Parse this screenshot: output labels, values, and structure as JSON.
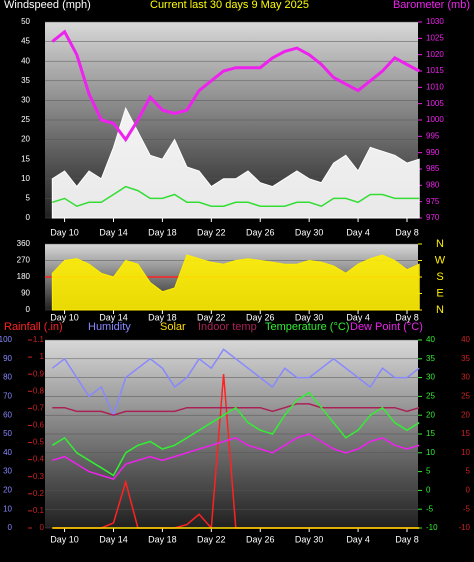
{
  "chart_data": [
    {
      "type": "line",
      "title": "Current last 30 days 9 May 2025",
      "y_label": "Windspeed (mph)",
      "y2_label": "Barometer (mb)",
      "x": [
        0,
        1,
        2,
        3,
        4,
        5,
        6,
        7,
        8,
        9,
        10,
        11,
        12,
        13,
        14,
        15,
        16,
        17,
        18,
        19,
        20,
        21,
        22,
        23,
        24,
        25,
        26,
        27,
        28,
        29,
        30
      ],
      "xlim": [
        -0.6,
        29.9
      ],
      "xticks": [
        {
          "value": 1,
          "label": "Day 10"
        },
        {
          "value": 5,
          "label": "Day 14"
        },
        {
          "value": 9,
          "label": "Day 18"
        },
        {
          "value": 13,
          "label": "Day 22"
        },
        {
          "value": 17,
          "label": "Day 26"
        },
        {
          "value": 21,
          "label": "Day 30"
        },
        {
          "value": 25,
          "label": "Day 4"
        },
        {
          "value": 29,
          "label": "Day 8"
        }
      ],
      "ylim": [
        0,
        50
      ],
      "yticks": [
        0,
        5,
        10,
        15,
        20,
        25,
        30,
        35,
        40,
        45,
        50
      ],
      "y2lim": [
        970,
        1030
      ],
      "y2ticks": [
        970,
        975,
        980,
        985,
        990,
        995,
        1000,
        1005,
        1010,
        1015,
        1020,
        1025,
        1030
      ],
      "series": [
        {
          "color": "#ffffff",
          "fill": true,
          "values": [
            10,
            12,
            8,
            12,
            10,
            18,
            28,
            22,
            16,
            15,
            20,
            13,
            12,
            8,
            10,
            10,
            12,
            9,
            8,
            10,
            12,
            10,
            9,
            14,
            16,
            12,
            18,
            17,
            16,
            14,
            15
          ]
        },
        {
          "color": "#33dd33",
          "fill": false,
          "values": [
            4,
            5,
            3,
            4,
            4,
            6,
            8,
            7,
            5,
            5,
            6,
            4,
            4,
            3,
            3,
            4,
            4,
            3,
            3,
            3,
            4,
            4,
            3,
            5,
            5,
            4,
            6,
            6,
            5,
            5,
            5
          ]
        },
        {
          "color": "#ee22ee",
          "fill": false,
          "axis": "y2",
          "values": [
            1024,
            1027,
            1020,
            1008,
            1000,
            999,
            994,
            1000,
            1007,
            1003,
            1002,
            1003,
            1009,
            1012,
            1015,
            1016,
            1016,
            1016,
            1019,
            1021,
            1022,
            1020,
            1017,
            1013,
            1011,
            1009,
            1012,
            1015,
            1019,
            1017,
            1015
          ]
        }
      ]
    },
    {
      "type": "line",
      "x": [
        0,
        1,
        2,
        3,
        4,
        5,
        6,
        7,
        8,
        9,
        10,
        11,
        12,
        13,
        14,
        15,
        16,
        17,
        18,
        19,
        20,
        21,
        22,
        23,
        24,
        25,
        26,
        27,
        28,
        29,
        30
      ],
      "xlim": [
        -0.6,
        29.9
      ],
      "xticks": [
        {
          "value": 1,
          "label": "Day 10"
        },
        {
          "value": 5,
          "label": "Day 14"
        },
        {
          "value": 9,
          "label": "Day 18"
        },
        {
          "value": 13,
          "label": "Day 22"
        },
        {
          "value": 17,
          "label": "Day 26"
        },
        {
          "value": 21,
          "label": "Day 30"
        },
        {
          "value": 25,
          "label": "Day 4"
        },
        {
          "value": 29,
          "label": "Day 8"
        }
      ],
      "ylim": [
        0,
        360
      ],
      "yticks": [
        0,
        90,
        180,
        270,
        360
      ],
      "y2lim": [
        0,
        360
      ],
      "y2ticks": [
        {
          "value": 0,
          "label": "N"
        },
        {
          "value": 90,
          "label": "E"
        },
        {
          "value": 180,
          "label": "S"
        },
        {
          "value": 270,
          "label": "W"
        },
        {
          "value": 360,
          "label": "N"
        }
      ],
      "series": [
        {
          "color": "#ffee00",
          "fill": true,
          "values": [
            200,
            270,
            280,
            250,
            200,
            180,
            270,
            250,
            150,
            100,
            120,
            300,
            280,
            260,
            250,
            270,
            280,
            270,
            260,
            250,
            250,
            270,
            260,
            240,
            200,
            250,
            280,
            300,
            270,
            220,
            250
          ]
        }
      ]
    },
    {
      "type": "line",
      "x": [
        0,
        1,
        2,
        3,
        4,
        5,
        6,
        7,
        8,
        9,
        10,
        11,
        12,
        13,
        14,
        15,
        16,
        17,
        18,
        19,
        20,
        21,
        22,
        23,
        24,
        25,
        26,
        27,
        28,
        29,
        30
      ],
      "xlim": [
        -0.6,
        29.9
      ],
      "xticks": [
        {
          "value": 1,
          "label": "Day 10"
        },
        {
          "value": 5,
          "label": "Day 14"
        },
        {
          "value": 9,
          "label": "Day 18"
        },
        {
          "value": 13,
          "label": "Day 22"
        },
        {
          "value": 17,
          "label": "Day 26"
        },
        {
          "value": 21,
          "label": "Day 30"
        },
        {
          "value": 25,
          "label": "Day 4"
        },
        {
          "value": 29,
          "label": "Day 8"
        }
      ],
      "ylim": [
        0,
        100
      ],
      "yticks": [
        0,
        10,
        20,
        30,
        40,
        50,
        60,
        70,
        80,
        90,
        100
      ],
      "y2lim": [
        -10,
        40
      ],
      "y2ticks": [
        -10,
        -5,
        0,
        5,
        10,
        15,
        20,
        25,
        30,
        35,
        40
      ],
      "y3lim": [
        0,
        1.1
      ],
      "y3ticks": [
        0,
        0.1,
        0.2,
        0.3,
        0.4,
        0.5,
        0.6,
        0.7,
        0.8,
        0.9,
        1,
        1.1
      ],
      "series": [
        {
          "name": "Rainfall (.in)",
          "color": "#ff2222",
          "axis": "y3",
          "values": [
            0,
            0,
            0,
            0,
            0,
            0.03,
            0.27,
            0,
            0,
            0,
            0,
            0.02,
            0.08,
            0,
            0.9,
            0,
            0,
            0,
            0,
            0,
            0,
            0,
            0,
            0,
            0,
            0,
            0,
            0,
            0,
            0,
            0
          ]
        },
        {
          "name": "Humidity",
          "color": "#8888ff",
          "values": [
            85,
            90,
            80,
            70,
            75,
            60,
            80,
            85,
            90,
            85,
            75,
            80,
            90,
            85,
            95,
            90,
            85,
            80,
            75,
            85,
            80,
            80,
            85,
            90,
            85,
            80,
            75,
            85,
            80,
            80,
            85
          ]
        },
        {
          "name": "Solar",
          "color": "#ffdd00",
          "values": [
            0,
            0,
            0,
            0,
            0,
            0,
            0,
            0,
            0,
            0,
            0,
            0,
            0,
            0,
            0,
            0,
            0,
            0,
            0,
            0,
            0,
            0,
            0,
            0,
            0,
            0,
            0,
            0,
            0,
            0,
            0
          ]
        },
        {
          "name": "Indoor temp",
          "color": "#aa2255",
          "axis": "y2",
          "values": [
            22,
            22,
            21,
            21,
            21,
            20,
            21,
            21,
            21,
            21,
            21,
            22,
            22,
            22,
            22,
            22,
            22,
            22,
            21,
            22,
            23,
            23,
            22,
            22,
            22,
            22,
            22,
            22,
            22,
            21,
            22
          ]
        },
        {
          "name": "Temperature (°C)",
          "color": "#33ee33",
          "axis": "y2",
          "values": [
            12,
            14,
            10,
            8,
            6,
            4,
            10,
            12,
            13,
            11,
            12,
            14,
            16,
            18,
            20,
            22,
            18,
            16,
            15,
            20,
            24,
            26,
            22,
            18,
            14,
            16,
            20,
            22,
            18,
            16,
            18
          ]
        },
        {
          "name": "Dew Point (°C)",
          "color": "#ee22ee",
          "axis": "y2",
          "values": [
            8,
            9,
            7,
            5,
            4,
            3,
            7,
            8,
            9,
            8,
            9,
            10,
            11,
            12,
            13,
            14,
            12,
            11,
            10,
            12,
            14,
            15,
            13,
            11,
            10,
            11,
            13,
            14,
            12,
            11,
            12
          ]
        }
      ]
    }
  ]
}
